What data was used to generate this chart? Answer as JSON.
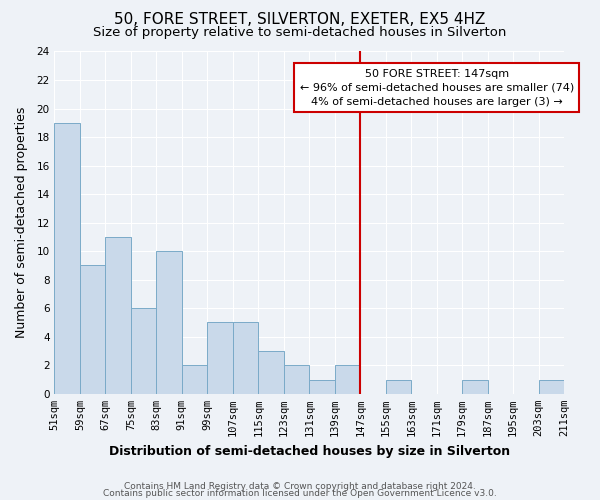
{
  "title": "50, FORE STREET, SILVERTON, EXETER, EX5 4HZ",
  "subtitle": "Size of property relative to semi-detached houses in Silverton",
  "xlabel": "Distribution of semi-detached houses by size in Silverton",
  "ylabel": "Number of semi-detached properties",
  "footer_line1": "Contains HM Land Registry data © Crown copyright and database right 2024.",
  "footer_line2": "Contains public sector information licensed under the Open Government Licence v3.0.",
  "bin_edges": [
    51,
    59,
    67,
    75,
    83,
    91,
    99,
    107,
    115,
    123,
    131,
    139,
    147,
    155,
    163,
    171,
    179,
    187,
    195,
    203,
    211
  ],
  "bin_labels": [
    "51sqm",
    "59sqm",
    "67sqm",
    "75sqm",
    "83sqm",
    "91sqm",
    "99sqm",
    "107sqm",
    "115sqm",
    "123sqm",
    "131sqm",
    "139sqm",
    "147sqm",
    "155sqm",
    "163sqm",
    "171sqm",
    "179sqm",
    "187sqm",
    "195sqm",
    "203sqm",
    "211sqm"
  ],
  "counts": [
    19,
    9,
    11,
    6,
    10,
    2,
    5,
    5,
    3,
    2,
    1,
    2,
    0,
    1,
    0,
    0,
    1,
    0,
    0,
    1
  ],
  "bar_color": "#c9d9ea",
  "bar_edge_color": "#7aaac8",
  "property_value": 147,
  "property_label": "50 FORE STREET: 147sqm",
  "annotation_line1": "← 96% of semi-detached houses are smaller (74)",
  "annotation_line2": "4% of semi-detached houses are larger (3) →",
  "vline_color": "#cc0000",
  "annotation_box_edge": "#cc0000",
  "ylim": [
    0,
    24
  ],
  "yticks": [
    0,
    2,
    4,
    6,
    8,
    10,
    12,
    14,
    16,
    18,
    20,
    22,
    24
  ],
  "background_color": "#eef2f7",
  "grid_color": "#ffffff",
  "title_fontsize": 11,
  "subtitle_fontsize": 9.5,
  "axis_label_fontsize": 9,
  "tick_fontsize": 7.5,
  "footer_fontsize": 6.5,
  "annotation_fontsize": 8
}
